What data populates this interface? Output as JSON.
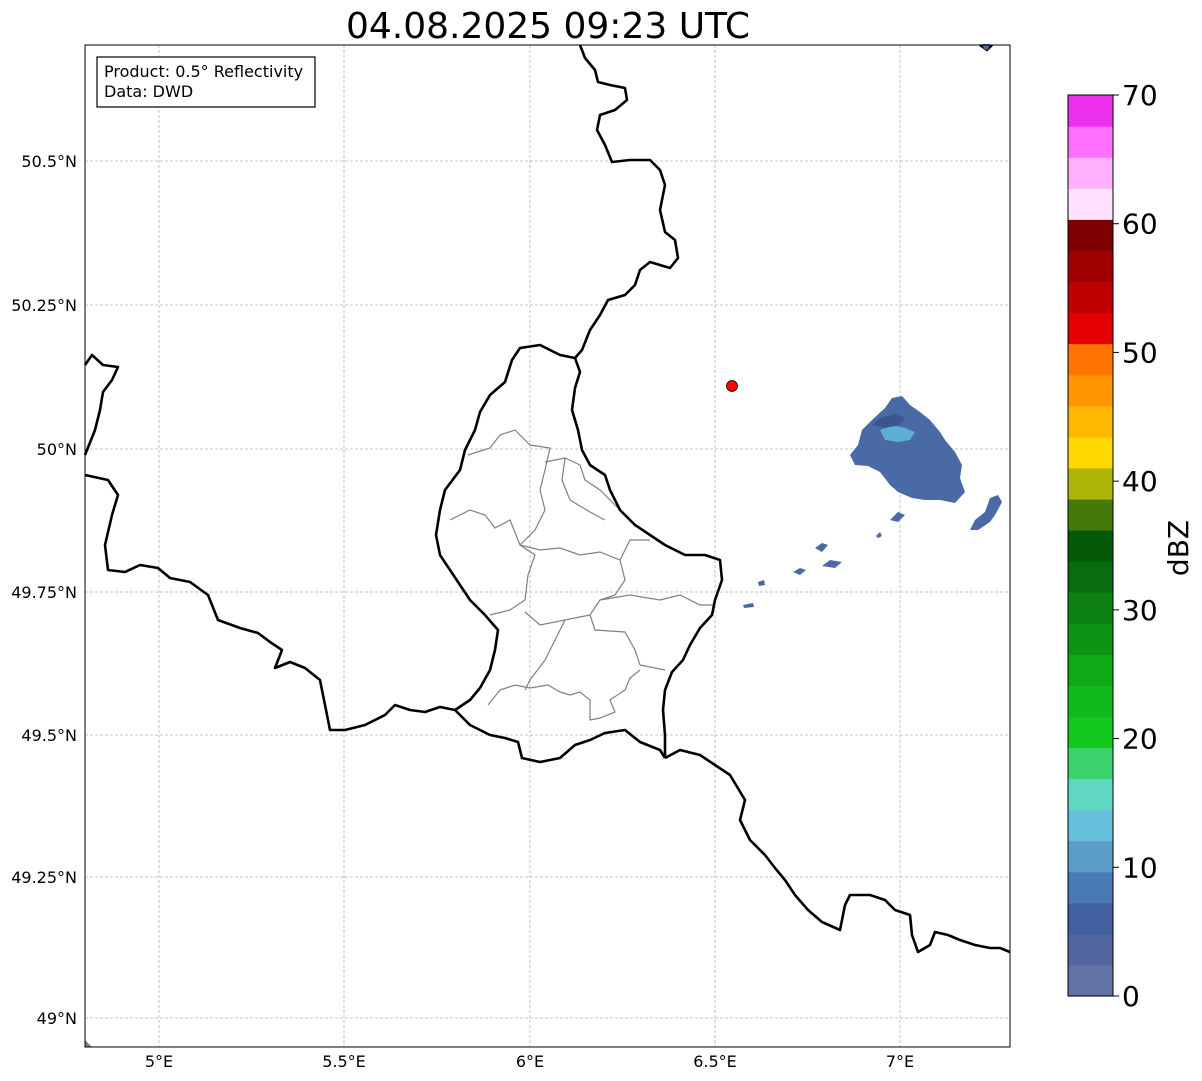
{
  "title": "04.08.2025 09:23 UTC",
  "info_box": {
    "product": "Product: 0.5° Reflectivity",
    "data": "Data: DWD"
  },
  "map": {
    "lon_range": [
      4.8,
      7.3
    ],
    "lat_range": [
      48.95,
      50.7
    ],
    "lon_ticks": [
      "5°E",
      "5.5°E",
      "6°E",
      "6.5°E",
      "7°E"
    ],
    "lat_ticks": [
      "50.5°N",
      "50.25°N",
      "50°N",
      "49.75°N",
      "49.5°N",
      "49.25°N",
      "49°N"
    ],
    "grid": true,
    "radar_site_color": "#ff0000",
    "border_color": "#000000",
    "district_border_color": "#808080",
    "echo_color": "#4a6aa5",
    "echo_core_color": "#5fb8d8"
  },
  "colorbar": {
    "label": "dBZ",
    "ticks": [
      "0",
      "10",
      "20",
      "30",
      "40",
      "50",
      "60",
      "70"
    ],
    "range": [
      0,
      70
    ],
    "colors": [
      "#6272a4",
      "#5266a0",
      "#4260a0",
      "#4a7ab5",
      "#5a9ec8",
      "#66c0dc",
      "#60d8c4",
      "#3cd26c",
      "#12c81e",
      "#10ba1e",
      "#0fa816",
      "#0e9414",
      "#0c8012",
      "#096c0e",
      "#055a08",
      "#457a0b",
      "#afb506",
      "#ffd800",
      "#ffb700",
      "#ff9600",
      "#ff7300",
      "#e40000",
      "#c00000",
      "#a00000",
      "#7d0000",
      "#ffe2ff",
      "#ffb0ff",
      "#ff70ff",
      "#ec30ec"
    ]
  }
}
